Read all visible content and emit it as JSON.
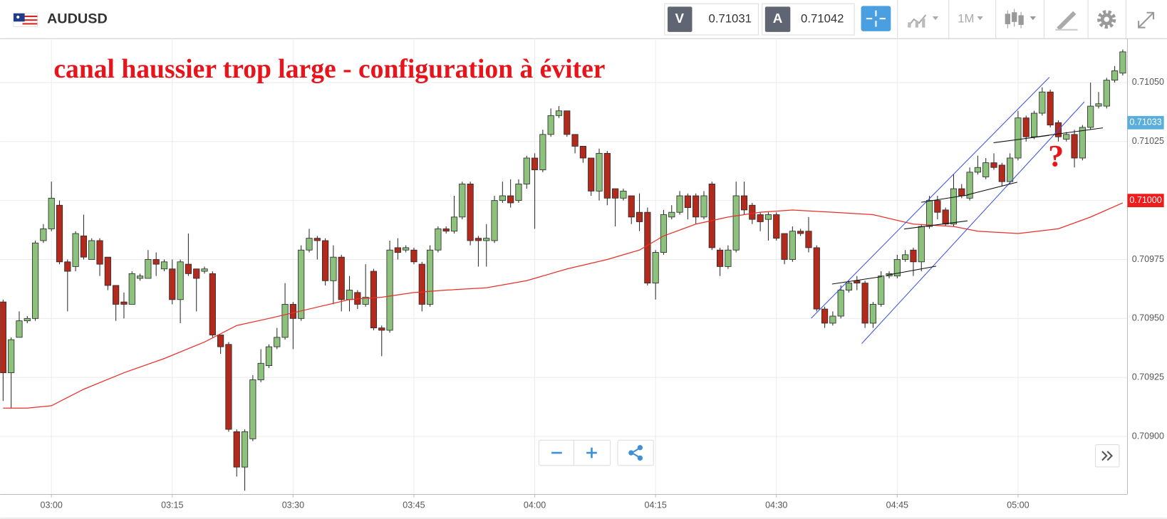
{
  "toolbar": {
    "symbol": "AUDUSD",
    "bid_label": "V",
    "bid": "0.71031",
    "ask_label": "A",
    "ask": "0.71042",
    "timeframe": "1M"
  },
  "chart_data": {
    "type": "candlestick",
    "title": "canal haussier trop large - configuration à éviter",
    "annotation": "?",
    "x": [
      174,
      175,
      176,
      177,
      178,
      179,
      180,
      181,
      182,
      183,
      184,
      185,
      186,
      187,
      188,
      189,
      190,
      191,
      192,
      193,
      194,
      195,
      196,
      197,
      198,
      199,
      200,
      201,
      202,
      203,
      204,
      205,
      206,
      207,
      208,
      209,
      210,
      211,
      212,
      213,
      214,
      215,
      216,
      217,
      218,
      219,
      220,
      221,
      222,
      223,
      224,
      225,
      226,
      227,
      228,
      229,
      230,
      231,
      232,
      233,
      234,
      235,
      236,
      237,
      238,
      239,
      240,
      241,
      242,
      243,
      244,
      245,
      246,
      247,
      248,
      249,
      250,
      251,
      252,
      253,
      254,
      255,
      256,
      257,
      258,
      259,
      260,
      261,
      262,
      263,
      264,
      265,
      266,
      267,
      268,
      269,
      270,
      271,
      272,
      273,
      274,
      275,
      276,
      277,
      278,
      279,
      280,
      281,
      282,
      283,
      284,
      285,
      286,
      287,
      288,
      289,
      290,
      291,
      292,
      293,
      294,
      295,
      296,
      297,
      298,
      299,
      300,
      301,
      302,
      303,
      304,
      305,
      306,
      307,
      308,
      309,
      310,
      311,
      312,
      313
    ],
    "open": [
      0.70957,
      0.70927,
      0.70942,
      0.70949,
      0.7095,
      0.70983,
      0.70988,
      0.70998,
      0.70974,
      0.70972,
      0.70985,
      0.70975,
      0.70983,
      0.70976,
      0.70964,
      0.70957,
      0.70956,
      0.70967,
      0.70967,
      0.70975,
      0.70971,
      0.70971,
      0.70958,
      0.70973,
      0.70971,
      0.7097,
      0.70969,
      0.70943,
      0.70939,
      0.70902,
      0.70887,
      0.70899,
      0.70924,
      0.7093,
      0.70938,
      0.70942,
      0.70956,
      0.7095,
      0.70979,
      0.70984,
      0.70983,
      0.70966,
      0.70976,
      0.70958,
      0.70961,
      0.70956,
      0.7097,
      0.70946,
      0.70945,
      0.7098,
      0.70979,
      0.70979,
      0.70973,
      0.70956,
      0.70979,
      0.70988,
      0.70987,
      0.70993,
      0.71007,
      0.70984,
      0.70983,
      0.70983,
      0.71,
      0.71002,
      0.71,
      0.71007,
      0.71018,
      0.71013,
      0.71028,
      0.71036,
      0.71038,
      0.71028,
      0.71023,
      0.71018,
      0.71004,
      0.7102,
      0.71005,
      0.71001,
      0.71002,
      0.70995,
      0.70995,
      0.70965,
      0.70978,
      0.70993,
      0.70995,
      0.71002,
      0.71002,
      0.70993,
      0.71007,
      0.70979,
      0.70972,
      0.70979,
      0.71002,
      0.70998,
      0.70994,
      0.70992,
      0.70994,
      0.70986,
      0.70975,
      0.70987,
      0.70987,
      0.7098,
      0.70954,
      0.70948,
      0.70951,
      0.70962,
      0.70966,
      0.70965,
      0.70948,
      0.70956,
      0.70968,
      0.70968,
      0.70975,
      0.70979,
      0.70974,
      0.70989,
      0.71,
      0.70996,
      0.7099,
      0.71005,
      0.71001,
      0.71012,
      0.7101,
      0.71016,
      0.71015,
      0.71008,
      0.71018,
      0.71035,
      0.71027,
      0.71037,
      0.71046,
      0.71033,
      0.71026,
      0.71028,
      0.71018,
      0.71031,
      0.7104,
      0.7104,
      0.71051,
      0.71054
    ],
    "high": [
      0.70958,
      0.70942,
      0.70953,
      0.70951,
      0.70983,
      0.7099,
      0.71008,
      0.71,
      0.70975,
      0.70987,
      0.70994,
      0.70984,
      0.70984,
      0.70976,
      0.70964,
      0.70961,
      0.7097,
      0.70969,
      0.70979,
      0.70978,
      0.70975,
      0.70975,
      0.70975,
      0.70986,
      0.70971,
      0.70972,
      0.7097,
      0.70943,
      0.7094,
      0.70903,
      0.70903,
      0.70926,
      0.70937,
      0.70939,
      0.70946,
      0.70965,
      0.70957,
      0.70981,
      0.70988,
      0.70985,
      0.70984,
      0.70981,
      0.70977,
      0.70968,
      0.70962,
      0.70973,
      0.70971,
      0.70947,
      0.70983,
      0.70984,
      0.70981,
      0.7098,
      0.70974,
      0.70981,
      0.70989,
      0.70989,
      0.71002,
      0.71008,
      0.71008,
      0.70985,
      0.7099,
      0.71002,
      0.71008,
      0.71009,
      0.71009,
      0.71019,
      0.7102,
      0.7103,
      0.71039,
      0.7104,
      0.71038,
      0.71028,
      0.71023,
      0.71018,
      0.71022,
      0.71021,
      0.71005,
      0.71005,
      0.71002,
      0.71003,
      0.70997,
      0.70979,
      0.70996,
      0.70998,
      0.71004,
      0.71003,
      0.71003,
      0.71004,
      0.71008,
      0.7098,
      0.70981,
      0.71008,
      0.71008,
      0.70999,
      0.70995,
      0.70995,
      0.70995,
      0.70986,
      0.70989,
      0.70988,
      0.70993,
      0.70981,
      0.70955,
      0.70953,
      0.70964,
      0.70966,
      0.70968,
      0.70966,
      0.70957,
      0.7097,
      0.7097,
      0.70977,
      0.70979,
      0.7098,
      0.7099,
      0.71002,
      0.71002,
      0.70997,
      0.71011,
      0.71007,
      0.71014,
      0.71019,
      0.71018,
      0.7102,
      0.71016,
      0.7102,
      0.71038,
      0.71036,
      0.71038,
      0.71048,
      0.71047,
      0.71034,
      0.71029,
      0.7103,
      0.71032,
      0.7105,
      0.71046,
      0.71052,
      0.71057,
      0.71064
    ],
    "low": [
      0.70915,
      0.70912,
      0.70942,
      0.70948,
      0.70949,
      0.70982,
      0.70987,
      0.70973,
      0.70953,
      0.7097,
      0.70975,
      0.70975,
      0.70968,
      0.70962,
      0.70949,
      0.7095,
      0.70956,
      0.70966,
      0.70967,
      0.70968,
      0.7097,
      0.70956,
      0.70948,
      0.70968,
      0.70953,
      0.70969,
      0.70942,
      0.70935,
      0.70902,
      0.70883,
      0.70877,
      0.70898,
      0.70923,
      0.70929,
      0.70937,
      0.70941,
      0.70937,
      0.70949,
      0.70978,
      0.70975,
      0.70964,
      0.70956,
      0.70953,
      0.70953,
      0.70954,
      0.70955,
      0.70945,
      0.70934,
      0.70944,
      0.70975,
      0.70978,
      0.70973,
      0.70953,
      0.70955,
      0.70978,
      0.70986,
      0.70986,
      0.70992,
      0.70981,
      0.70972,
      0.70972,
      0.70982,
      0.70999,
      0.70997,
      0.70999,
      0.71005,
      0.70988,
      0.71012,
      0.71027,
      0.71035,
      0.71027,
      0.7102,
      0.71016,
      0.71002,
      0.71,
      0.70998,
      0.70989,
      0.71,
      0.7099,
      0.70987,
      0.70964,
      0.70958,
      0.70977,
      0.70992,
      0.70994,
      0.70992,
      0.7099,
      0.70992,
      0.70979,
      0.70968,
      0.70971,
      0.70978,
      0.70994,
      0.7099,
      0.70987,
      0.70983,
      0.70983,
      0.70973,
      0.70974,
      0.70985,
      0.70978,
      0.70953,
      0.70946,
      0.70947,
      0.7095,
      0.70961,
      0.70962,
      0.70946,
      0.70946,
      0.70955,
      0.70967,
      0.70967,
      0.70974,
      0.70968,
      0.7097,
      0.70988,
      0.70992,
      0.70989,
      0.70989,
      0.71001,
      0.71,
      0.71011,
      0.71009,
      0.71013,
      0.71006,
      0.71007,
      0.71017,
      0.71025,
      0.71026,
      0.71036,
      0.71031,
      0.71025,
      0.71025,
      0.71014,
      0.71017,
      0.7103,
      0.71039,
      0.71039,
      0.7105,
      0.71053
    ],
    "close": [
      0.70927,
      0.70941,
      0.70949,
      0.7095,
      0.70982,
      0.70988,
      0.71001,
      0.70974,
      0.7097,
      0.70986,
      0.70976,
      0.70983,
      0.70973,
      0.70964,
      0.70956,
      0.70956,
      0.70969,
      0.70968,
      0.70975,
      0.70973,
      0.70974,
      0.70958,
      0.70974,
      0.70969,
      0.70967,
      0.70971,
      0.70943,
      0.70938,
      0.70903,
      0.70887,
      0.70902,
      0.70924,
      0.70931,
      0.70938,
      0.70942,
      0.70956,
      0.7095,
      0.70979,
      0.70984,
      0.70983,
      0.70966,
      0.70976,
      0.70958,
      0.70962,
      0.70956,
      0.70959,
      0.70946,
      0.70945,
      0.70979,
      0.70978,
      0.7098,
      0.70974,
      0.70956,
      0.70979,
      0.70988,
      0.70987,
      0.70993,
      0.71007,
      0.70983,
      0.70983,
      0.70984,
      0.71,
      0.71002,
      0.70999,
      0.71007,
      0.71018,
      0.71013,
      0.71028,
      0.71036,
      0.71038,
      0.71028,
      0.71023,
      0.71018,
      0.71004,
      0.7102,
      0.71001,
      0.71001,
      0.71004,
      0.70993,
      0.70991,
      0.70965,
      0.70978,
      0.70994,
      0.70995,
      0.71002,
      0.70997,
      0.70993,
      0.71002,
      0.7098,
      0.70972,
      0.70979,
      0.71002,
      0.70996,
      0.70992,
      0.70991,
      0.70994,
      0.70984,
      0.70975,
      0.70987,
      0.70986,
      0.7098,
      0.70954,
      0.70948,
      0.70951,
      0.70962,
      0.70965,
      0.70965,
      0.70948,
      0.70956,
      0.70968,
      0.70969,
      0.70975,
      0.70977,
      0.70974,
      0.70989,
      0.71,
      0.70995,
      0.7099,
      0.71005,
      0.71002,
      0.71012,
      0.71014,
      0.71016,
      0.71014,
      0.71008,
      0.71018,
      0.71035,
      0.71027,
      0.71037,
      0.71046,
      0.71032,
      0.71027,
      0.71028,
      0.71018,
      0.71031,
      0.7104,
      0.71041,
      0.71051,
      0.71055,
      0.71063
    ],
    "up_color": "#8cc27c",
    "down_color": "#b32a1c",
    "ma": {
      "x": [
        174,
        177,
        180,
        184,
        189,
        194,
        199,
        203,
        207,
        212,
        217,
        221,
        225,
        229,
        234,
        239,
        244,
        249,
        253,
        256,
        260,
        264,
        268,
        272,
        277,
        282,
        287,
        292,
        295,
        300,
        305,
        309,
        313
      ],
      "values": [
        0.70912,
        0.70912,
        0.70913,
        0.7092,
        0.70927,
        0.70933,
        0.7094,
        0.70947,
        0.7095,
        0.70954,
        0.70958,
        0.70959,
        0.70961,
        0.70962,
        0.70963,
        0.70966,
        0.70971,
        0.70975,
        0.70979,
        0.70985,
        0.7099,
        0.70993,
        0.70995,
        0.70996,
        0.70995,
        0.70994,
        0.7099,
        0.70989,
        0.70987,
        0.70986,
        0.70988,
        0.70993,
        0.70999
      ],
      "color": "#e8302a"
    },
    "xlim": [
      173.63,
      313.58
    ],
    "ylim": [
      0.708754,
      0.710686
    ],
    "xticks": [
      {
        "value": 180,
        "label": "03:00"
      },
      {
        "value": 195,
        "label": "03:15"
      },
      {
        "value": 210,
        "label": "03:30"
      },
      {
        "value": 225,
        "label": "03:45"
      },
      {
        "value": 240,
        "label": "04:00"
      },
      {
        "value": 255,
        "label": "04:15"
      },
      {
        "value": 270,
        "label": "04:30"
      },
      {
        "value": 285,
        "label": "04:45"
      },
      {
        "value": 300,
        "label": "05:00"
      }
    ],
    "yticks": [
      {
        "value": 0.709,
        "label": "0.70900"
      },
      {
        "value": 0.70925,
        "label": "0.70925"
      },
      {
        "value": 0.7095,
        "label": "0.70950"
      },
      {
        "value": 0.70975,
        "label": "0.70975"
      },
      {
        "value": 0.71,
        "label": "0.71000"
      },
      {
        "value": 0.71025,
        "label": "0.71025"
      },
      {
        "value": 0.7105,
        "label": "0.71050"
      }
    ],
    "grid": true,
    "price_markers": [
      {
        "value": 0.71033,
        "label": "0.71033",
        "color": "#5aaedc"
      },
      {
        "value": 0.71,
        "label": "0.71000",
        "color": "#ee1c1c"
      }
    ]
  }
}
